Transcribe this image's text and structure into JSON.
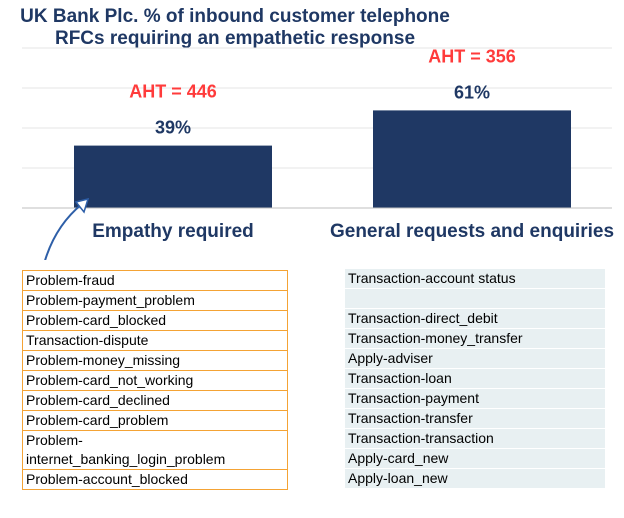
{
  "title_lines": [
    "UK Bank Plc. % of inbound customer telephone",
    "RFCs requiring an empathetic response"
  ],
  "colors": {
    "bar": "#1f3864",
    "aht": "#ff3b3b",
    "box_border": "#f4a335",
    "row_fill": "#e8f0f2",
    "arrow": "#2e5fa8"
  },
  "chart_data": {
    "type": "bar",
    "title": "UK Bank Plc. % of inbound customer telephone RFCs requiring an empathetic response",
    "categories": [
      "Empathy required",
      "General requests and enquiries"
    ],
    "values": [
      39,
      61
    ],
    "value_labels": [
      "39%",
      "61%"
    ],
    "annotations": [
      "AHT = 446",
      "AHT = 356"
    ],
    "ylim": [
      0,
      100
    ],
    "grid": true,
    "legend": "none"
  },
  "lists": {
    "empathy": [
      "Problem-fraud",
      "Problem-payment_problem",
      "Problem-card_blocked",
      "Transaction-dispute",
      "Problem-money_missing",
      "Problem-card_not_working",
      "Problem-card_declined",
      "Problem-card_problem",
      "Problem-\ninternet_banking_login_problem",
      "Problem-account_blocked"
    ],
    "general": [
      "Transaction-account status",
      "",
      "Transaction-direct_debit",
      "Transaction-money_transfer",
      "Apply-adviser",
      "Transaction-loan",
      "Transaction-payment",
      "Transaction-transfer",
      "Transaction-transaction",
      "Apply-card_new",
      "Apply-loan_new"
    ]
  }
}
